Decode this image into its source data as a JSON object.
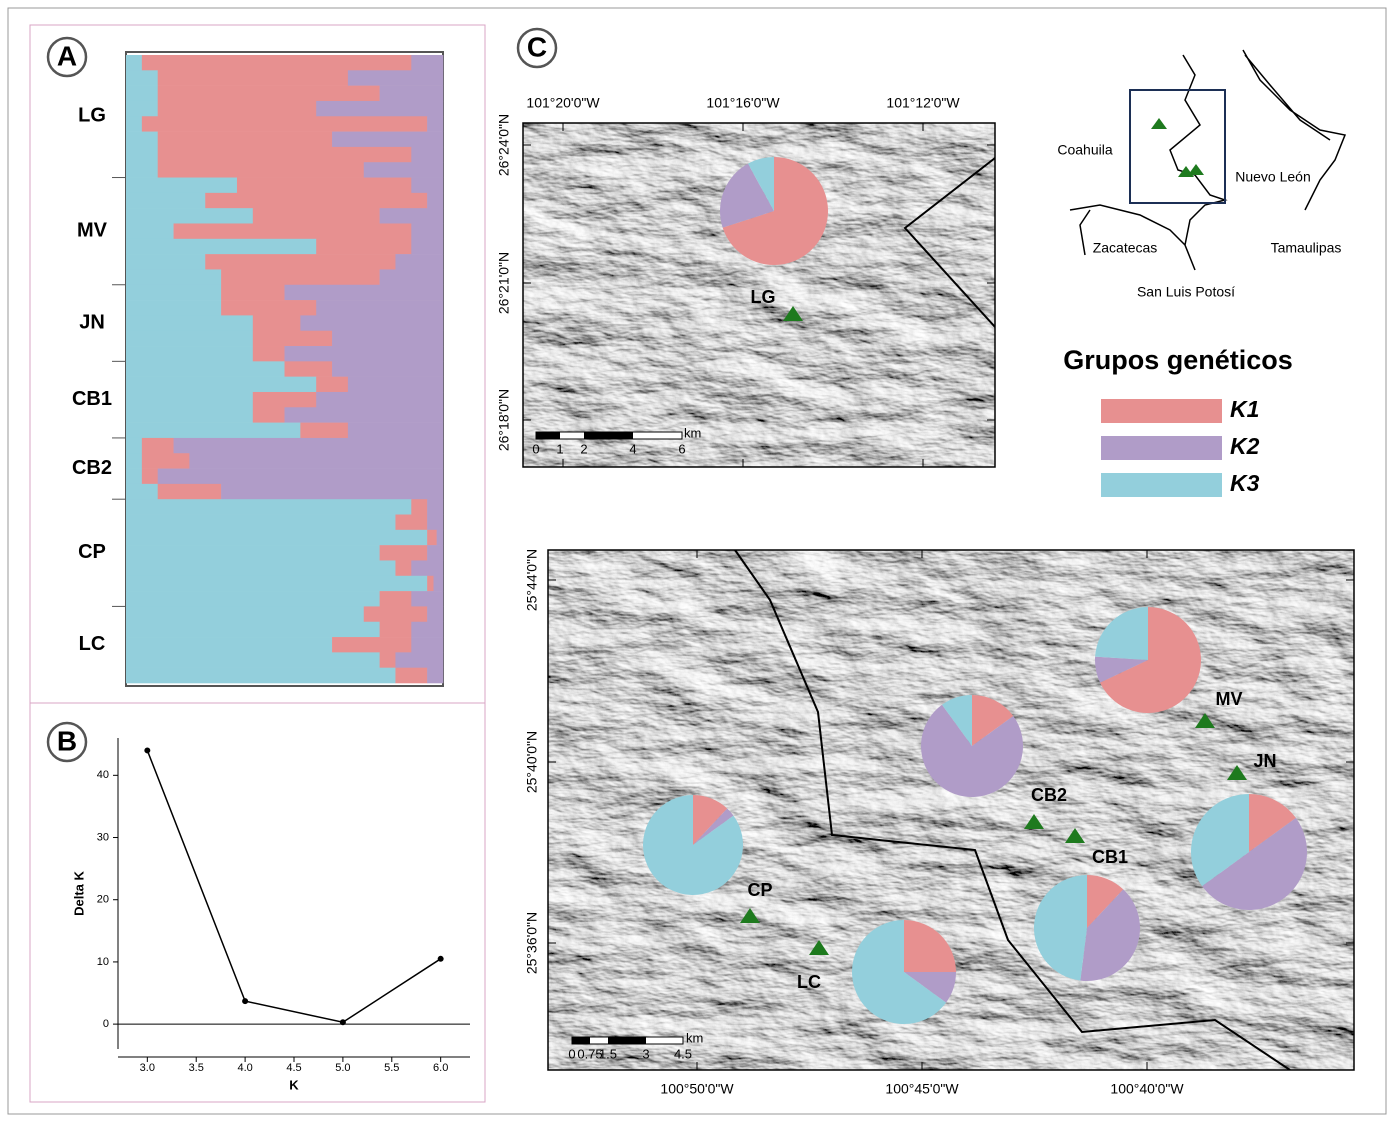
{
  "panel_labels": [
    "A",
    "B",
    "C"
  ],
  "chart_data": [
    {
      "type": "structure",
      "categories": [
        "LG",
        null,
        null,
        null,
        null,
        null,
        null,
        null,
        "MV",
        null,
        null,
        null,
        null,
        null,
        null,
        "JN",
        null,
        null,
        null,
        null,
        "CB1",
        null,
        null,
        null,
        null,
        "CB2",
        null,
        null,
        null,
        "CP",
        null,
        null,
        null,
        null,
        null,
        null,
        "LC",
        null,
        null,
        null,
        null
      ],
      "series": [
        {
          "name": "K1",
          "color": "#e79090",
          "values": [
            0.85,
            0.6,
            0.7,
            0.5,
            0.9,
            0.55,
            0.8,
            0.65,
            0.55,
            0.7,
            0.4,
            0.75,
            0.3,
            0.6,
            0.5,
            0.2,
            0.3,
            0.15,
            0.25,
            0.1,
            0.15,
            0.1,
            0.2,
            0.1,
            0.15,
            0.1,
            0.15,
            0.05,
            0.2,
            0.05,
            0.1,
            0.03,
            0.15,
            0.05,
            0.02,
            0.1,
            0.2,
            0.1,
            0.25,
            0.05,
            0.1
          ]
        },
        {
          "name": "K2",
          "color": "#b09cc8",
          "values": [
            0.1,
            0.3,
            0.2,
            0.4,
            0.05,
            0.35,
            0.1,
            0.25,
            0.1,
            0.05,
            0.2,
            0.1,
            0.1,
            0.15,
            0.2,
            0.5,
            0.4,
            0.45,
            0.35,
            0.5,
            0.35,
            0.3,
            0.4,
            0.5,
            0.3,
            0.85,
            0.8,
            0.9,
            0.7,
            0.05,
            0.05,
            0.02,
            0.05,
            0.1,
            0.03,
            0.1,
            0.05,
            0.1,
            0.1,
            0.15,
            0.05
          ]
        },
        {
          "name": "K3",
          "color": "#93cfdc",
          "values": [
            0.05,
            0.1,
            0.1,
            0.1,
            0.05,
            0.1,
            0.1,
            0.1,
            0.35,
            0.25,
            0.4,
            0.15,
            0.6,
            0.25,
            0.3,
            0.3,
            0.3,
            0.4,
            0.4,
            0.4,
            0.5,
            0.6,
            0.4,
            0.4,
            0.55,
            0.05,
            0.05,
            0.05,
            0.1,
            0.9,
            0.85,
            0.95,
            0.8,
            0.85,
            0.95,
            0.8,
            0.75,
            0.8,
            0.65,
            0.8,
            0.85
          ]
        }
      ]
    },
    {
      "type": "line",
      "x": [
        3,
        4,
        5,
        6
      ],
      "values": [
        44,
        3.7,
        0.3,
        10.5
      ],
      "xlim": [
        2.7,
        6.3
      ],
      "ylim": [
        -4,
        46
      ],
      "xticks": [
        {
          "value": 3,
          "label": "3.0"
        },
        3.5,
        {
          "value": 4,
          "label": "4.0"
        },
        4.5,
        {
          "value": 5,
          "label": "5.0"
        },
        5.5,
        {
          "value": 6,
          "label": "6.0"
        }
      ],
      "yticks": [
        0,
        10,
        20,
        30,
        40
      ],
      "xlabel": "K",
      "ylabel": "Delta K",
      "color": "#000000"
    },
    {
      "type": "pie-map",
      "title": "Grupos genéticos",
      "categories": [
        "K1",
        "K2",
        "K3"
      ],
      "colors": [
        "#e79090",
        "#b09cc8",
        "#93cfdc"
      ],
      "sites": [
        {
          "name": "LG",
          "values": [
            70,
            22,
            8
          ]
        },
        {
          "name": "MV",
          "values": [
            68,
            8,
            24
          ]
        },
        {
          "name": "JN",
          "values": [
            15,
            50,
            35
          ]
        },
        {
          "name": "CB1",
          "values": [
            12,
            40,
            48
          ]
        },
        {
          "name": "CB2",
          "values": [
            15,
            75,
            10
          ]
        },
        {
          "name": "CP",
          "values": [
            12,
            3,
            85
          ]
        },
        {
          "name": "LC",
          "values": [
            25,
            10,
            65
          ]
        }
      ]
    }
  ],
  "maps": {
    "upper": {
      "xlabels": [
        "101°20'0\"W",
        "101°16'0\"W",
        "101°12'0\"W"
      ],
      "ylabels": [
        "26°24'0\"N",
        "26°21'0\"N",
        "26°18'0\"N"
      ],
      "scale": [
        "0",
        "1",
        "2",
        "4",
        "6"
      ],
      "unit": "km"
    },
    "lower": {
      "xlabels": [
        "100°50'0\"W",
        "100°45'0\"W",
        "100°40'0\"W"
      ],
      "ylabels": [
        "25°44'0\"N",
        "25°40'0\"N",
        "25°36'0\"N"
      ],
      "scale": [
        "0",
        "0.75",
        "1.5",
        "3",
        "4.5"
      ],
      "unit": "km"
    },
    "inset": {
      "states": [
        "Coahuila",
        "Nuevo León",
        "Zacatecas",
        "Tamaulipas",
        "San Luis Potosí"
      ]
    }
  }
}
